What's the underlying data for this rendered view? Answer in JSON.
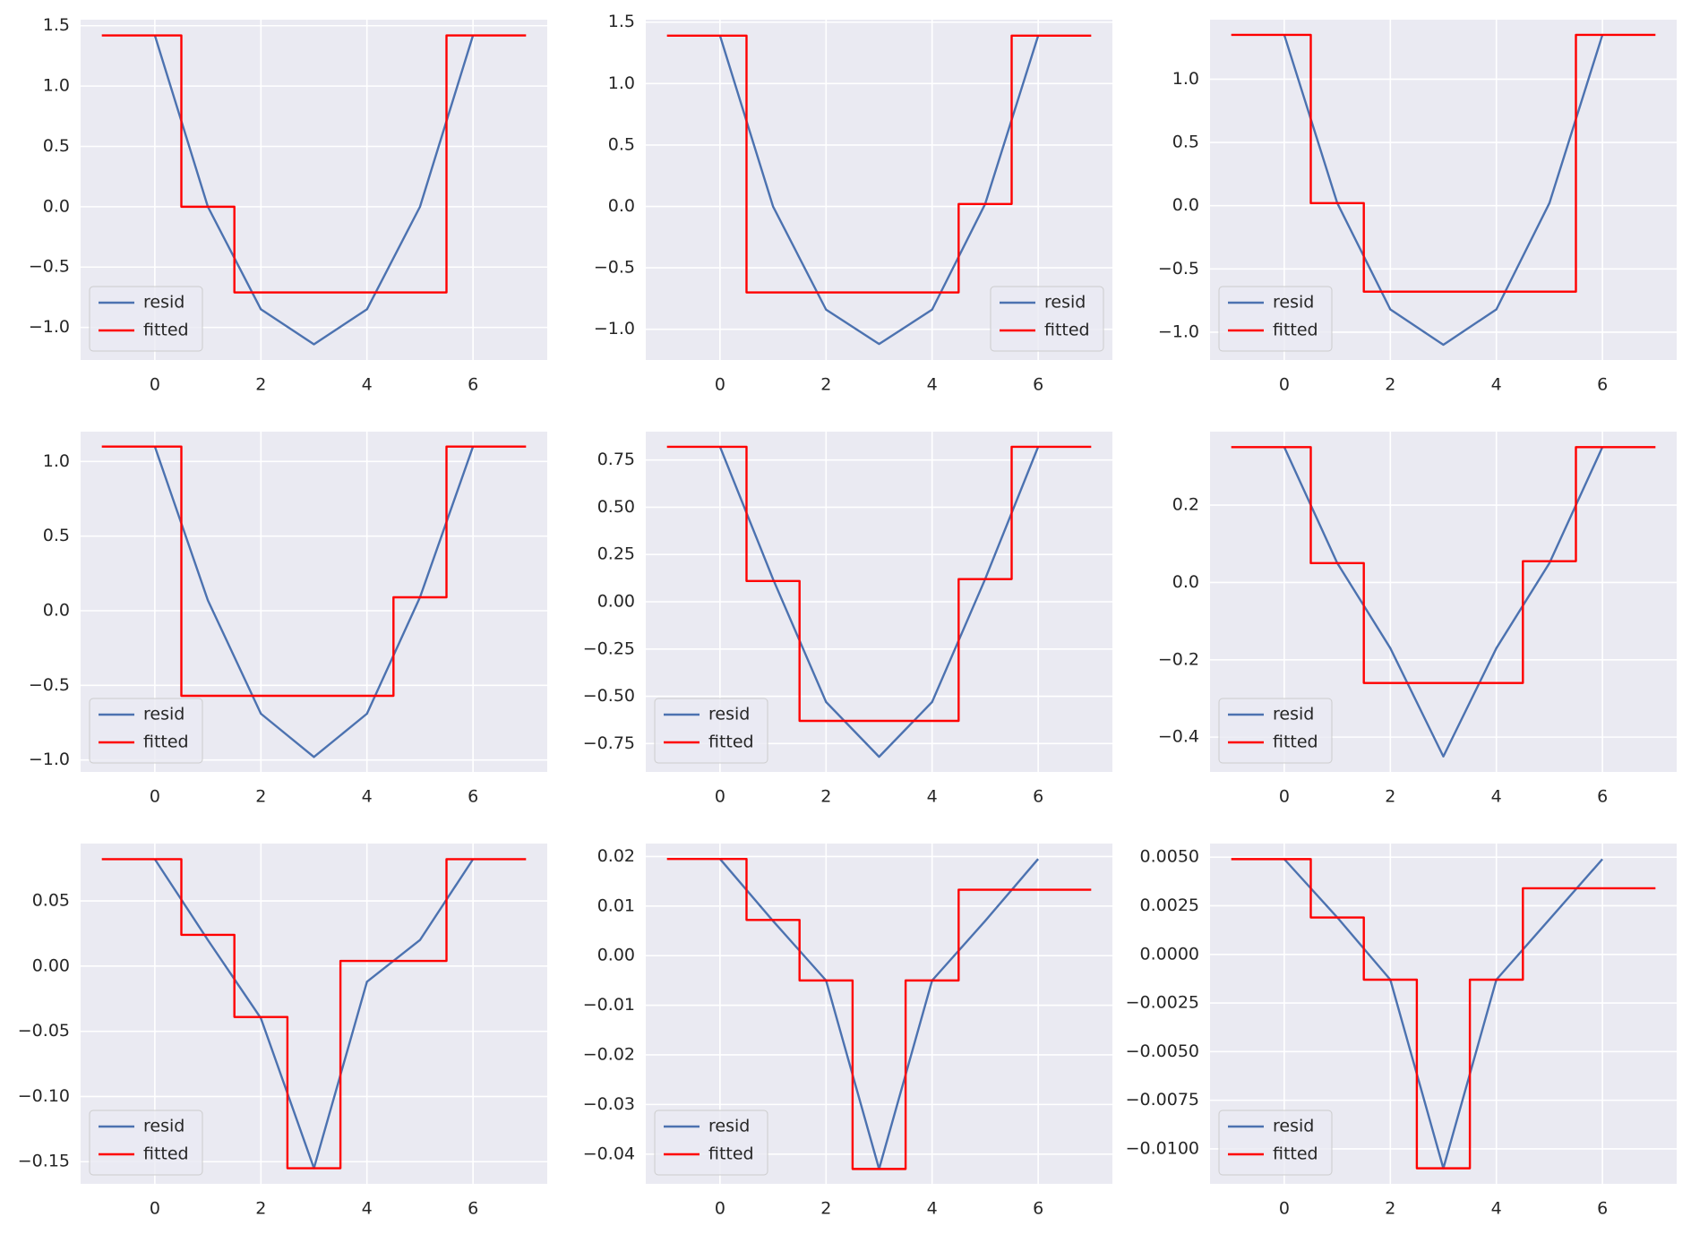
{
  "chart_data": [
    {
      "type": "line",
      "xlim": [
        -1.4,
        7.4
      ],
      "xticks": [
        0,
        2,
        4,
        6
      ],
      "ylim": [
        -1.27,
        1.55
      ],
      "yticks": [
        {
          "value": -1,
          "label": "−1.0"
        },
        {
          "value": -0.5,
          "label": "−0.5"
        },
        {
          "value": 0,
          "label": "0.0"
        },
        0.5,
        {
          "value": 1,
          "label": "1.0"
        },
        1.5
      ],
      "grid": true,
      "legend": "lower left",
      "series": [
        {
          "name": "resid",
          "color": "#4c72b0",
          "x": [
            0,
            1,
            2,
            3,
            4,
            5,
            6
          ],
          "values": [
            1.42,
            0.0,
            -0.85,
            -1.14,
            -0.85,
            0.0,
            1.42
          ]
        },
        {
          "name": "fitted",
          "color": "#ff0000",
          "drawstyle": "steps-mid",
          "x": [
            -1,
            0,
            1,
            2,
            3,
            4,
            5,
            6,
            7
          ],
          "values": [
            1.42,
            1.42,
            0.0,
            -0.71,
            -0.71,
            -0.71,
            -0.71,
            1.42,
            1.42
          ]
        }
      ]
    },
    {
      "type": "line",
      "xlim": [
        -1.4,
        7.4
      ],
      "xticks": [
        0,
        2,
        4,
        6
      ],
      "ylim": [
        -1.25,
        1.52
      ],
      "yticks": [
        {
          "value": -1,
          "label": "−1.0"
        },
        {
          "value": -0.5,
          "label": "−0.5"
        },
        {
          "value": 0,
          "label": "0.0"
        },
        0.5,
        {
          "value": 1,
          "label": "1.0"
        },
        1.5
      ],
      "grid": true,
      "legend": "lower right",
      "series": [
        {
          "name": "resid",
          "color": "#4c72b0",
          "x": [
            0,
            1,
            2,
            3,
            4,
            5,
            6
          ],
          "values": [
            1.39,
            0.0,
            -0.84,
            -1.12,
            -0.84,
            0.02,
            1.39
          ]
        },
        {
          "name": "fitted",
          "color": "#ff0000",
          "drawstyle": "steps-mid",
          "x": [
            -1,
            0,
            1,
            2,
            3,
            4,
            5,
            6,
            7
          ],
          "values": [
            1.39,
            1.39,
            -0.7,
            -0.7,
            -0.7,
            -0.7,
            0.02,
            1.39,
            1.39
          ]
        }
      ]
    },
    {
      "type": "line",
      "xlim": [
        -1.4,
        7.4
      ],
      "xticks": [
        0,
        2,
        4,
        6
      ],
      "ylim": [
        -1.22,
        1.47
      ],
      "yticks": [
        {
          "value": -1,
          "label": "−1.0"
        },
        {
          "value": -0.5,
          "label": "−0.5"
        },
        {
          "value": 0,
          "label": "0.0"
        },
        0.5,
        {
          "value": 1,
          "label": "1.0"
        }
      ],
      "grid": true,
      "legend": "lower left",
      "series": [
        {
          "name": "resid",
          "color": "#4c72b0",
          "x": [
            0,
            1,
            2,
            3,
            4,
            5,
            6
          ],
          "values": [
            1.35,
            0.02,
            -0.82,
            -1.1,
            -0.82,
            0.02,
            1.35
          ]
        },
        {
          "name": "fitted",
          "color": "#ff0000",
          "drawstyle": "steps-mid",
          "x": [
            -1,
            0,
            1,
            2,
            3,
            4,
            5,
            6,
            7
          ],
          "values": [
            1.35,
            1.35,
            0.02,
            -0.68,
            -0.68,
            -0.68,
            -0.68,
            1.35,
            1.35
          ]
        }
      ]
    },
    {
      "type": "line",
      "xlim": [
        -1.4,
        7.4
      ],
      "xticks": [
        0,
        2,
        4,
        6
      ],
      "ylim": [
        -1.08,
        1.2
      ],
      "yticks": [
        {
          "value": -1,
          "label": "−1.0"
        },
        {
          "value": -0.5,
          "label": "−0.5"
        },
        {
          "value": 0,
          "label": "0.0"
        },
        0.5,
        {
          "value": 1,
          "label": "1.0"
        }
      ],
      "grid": true,
      "legend": "lower left",
      "series": [
        {
          "name": "resid",
          "color": "#4c72b0",
          "x": [
            0,
            1,
            2,
            3,
            4,
            5,
            6
          ],
          "values": [
            1.1,
            0.07,
            -0.69,
            -0.98,
            -0.69,
            0.09,
            1.1
          ]
        },
        {
          "name": "fitted",
          "color": "#ff0000",
          "drawstyle": "steps-mid",
          "x": [
            -1,
            0,
            1,
            2,
            3,
            4,
            5,
            6,
            7
          ],
          "values": [
            1.1,
            1.1,
            -0.57,
            -0.57,
            -0.57,
            -0.57,
            0.09,
            1.1,
            1.1
          ]
        }
      ]
    },
    {
      "type": "line",
      "xlim": [
        -1.4,
        7.4
      ],
      "xticks": [
        0,
        2,
        4,
        6
      ],
      "ylim": [
        -0.9,
        0.9
      ],
      "yticks": [
        {
          "value": -0.75,
          "label": "−0.75"
        },
        {
          "value": -0.5,
          "label": "−0.50"
        },
        {
          "value": -0.25,
          "label": "−0.25"
        },
        {
          "value": 0,
          "label": "0.00"
        },
        0.25,
        {
          "value": 0.5,
          "label": "0.50"
        },
        0.75
      ],
      "grid": true,
      "legend": "lower left",
      "series": [
        {
          "name": "resid",
          "color": "#4c72b0",
          "x": [
            0,
            1,
            2,
            3,
            4,
            5,
            6
          ],
          "values": [
            0.82,
            0.12,
            -0.53,
            -0.82,
            -0.53,
            0.12,
            0.82
          ]
        },
        {
          "name": "fitted",
          "color": "#ff0000",
          "drawstyle": "steps-mid",
          "x": [
            -1,
            0,
            1,
            2,
            3,
            4,
            5,
            6,
            7
          ],
          "values": [
            0.82,
            0.82,
            0.11,
            -0.63,
            -0.63,
            -0.63,
            0.12,
            0.82,
            0.82
          ]
        }
      ]
    },
    {
      "type": "line",
      "xlim": [
        -1.4,
        7.4
      ],
      "xticks": [
        0,
        2,
        4,
        6
      ],
      "ylim": [
        -0.49,
        0.39
      ],
      "yticks": [
        {
          "value": -0.4,
          "label": "−0.4"
        },
        {
          "value": -0.2,
          "label": "−0.2"
        },
        {
          "value": 0,
          "label": "0.0"
        },
        0.2
      ],
      "grid": true,
      "legend": "lower left",
      "series": [
        {
          "name": "resid",
          "color": "#4c72b0",
          "x": [
            0,
            1,
            2,
            3,
            4,
            5,
            6
          ],
          "values": [
            0.35,
            0.05,
            -0.17,
            -0.45,
            -0.17,
            0.05,
            0.35
          ]
        },
        {
          "name": "fitted",
          "color": "#ff0000",
          "drawstyle": "steps-mid",
          "x": [
            -1,
            0,
            1,
            2,
            3,
            4,
            5,
            6,
            7
          ],
          "values": [
            0.35,
            0.35,
            0.05,
            -0.26,
            -0.26,
            -0.26,
            0.055,
            0.35,
            0.35
          ]
        }
      ]
    },
    {
      "type": "line",
      "xlim": [
        -1.4,
        7.4
      ],
      "xticks": [
        0,
        2,
        4,
        6
      ],
      "ylim": [
        -0.167,
        0.094
      ],
      "yticks": [
        {
          "value": -0.15,
          "label": "−0.15"
        },
        {
          "value": -0.1,
          "label": "−0.10"
        },
        {
          "value": -0.05,
          "label": "−0.05"
        },
        {
          "value": 0,
          "label": "0.00"
        },
        0.05
      ],
      "grid": true,
      "legend": "lower left",
      "series": [
        {
          "name": "resid",
          "color": "#4c72b0",
          "x": [
            0,
            1,
            2,
            3,
            4,
            5,
            6
          ],
          "values": [
            0.082,
            0.02,
            -0.04,
            -0.155,
            -0.012,
            0.02,
            0.082
          ]
        },
        {
          "name": "fitted",
          "color": "#ff0000",
          "drawstyle": "steps-mid",
          "x": [
            -1,
            0,
            1,
            2,
            3,
            4,
            5,
            6,
            7
          ],
          "values": [
            0.082,
            0.082,
            0.024,
            -0.039,
            -0.155,
            0.004,
            0.004,
            0.082,
            0.082
          ]
        }
      ]
    },
    {
      "type": "line",
      "xlim": [
        -1.4,
        7.4
      ],
      "xticks": [
        0,
        2,
        4,
        6
      ],
      "ylim": [
        -0.046,
        0.0226
      ],
      "yticks": [
        {
          "value": -0.04,
          "label": "−0.04"
        },
        {
          "value": -0.03,
          "label": "−0.03"
        },
        {
          "value": -0.02,
          "label": "−0.02"
        },
        {
          "value": -0.01,
          "label": "−0.01"
        },
        {
          "value": 0,
          "label": "0.00"
        },
        0.01,
        0.02
      ],
      "grid": true,
      "legend": "lower left",
      "series": [
        {
          "name": "resid",
          "color": "#4c72b0",
          "x": [
            0,
            1,
            2,
            3,
            4,
            5,
            6
          ],
          "values": [
            0.0195,
            0.007,
            -0.005,
            -0.043,
            -0.005,
            0.007,
            0.0195
          ]
        },
        {
          "name": "fitted",
          "color": "#ff0000",
          "drawstyle": "steps-mid",
          "x": [
            -1,
            0,
            1,
            2,
            3,
            4,
            5,
            6,
            7
          ],
          "values": [
            0.0195,
            0.0195,
            0.0072,
            -0.005,
            -0.043,
            -0.005,
            0.0133,
            0.0133,
            0.0133
          ]
        }
      ]
    },
    {
      "type": "line",
      "xlim": [
        -1.4,
        7.4
      ],
      "xticks": [
        0,
        2,
        4,
        6
      ],
      "ylim": [
        -0.0118,
        0.0057
      ],
      "yticks": [
        {
          "value": -0.01,
          "label": "−0.0100"
        },
        {
          "value": -0.0075,
          "label": "−0.0075"
        },
        {
          "value": -0.005,
          "label": "−0.0050"
        },
        {
          "value": -0.0025,
          "label": "−0.0025"
        },
        {
          "value": 0,
          "label": "0.0000"
        },
        0.0025,
        {
          "value": 0.005,
          "label": "0.0050"
        }
      ],
      "grid": true,
      "legend": "lower left",
      "series": [
        {
          "name": "resid",
          "color": "#4c72b0",
          "x": [
            0,
            1,
            2,
            3,
            4,
            5,
            6
          ],
          "values": [
            0.0049,
            0.0019,
            -0.0013,
            -0.011,
            -0.0013,
            0.0018,
            0.0049
          ]
        },
        {
          "name": "fitted",
          "color": "#ff0000",
          "drawstyle": "steps-mid",
          "x": [
            -1,
            0,
            1,
            2,
            3,
            4,
            5,
            6,
            7
          ],
          "values": [
            0.0049,
            0.0049,
            0.0019,
            -0.0013,
            -0.011,
            -0.0013,
            0.0034,
            0.0034,
            0.0034
          ]
        }
      ]
    }
  ]
}
